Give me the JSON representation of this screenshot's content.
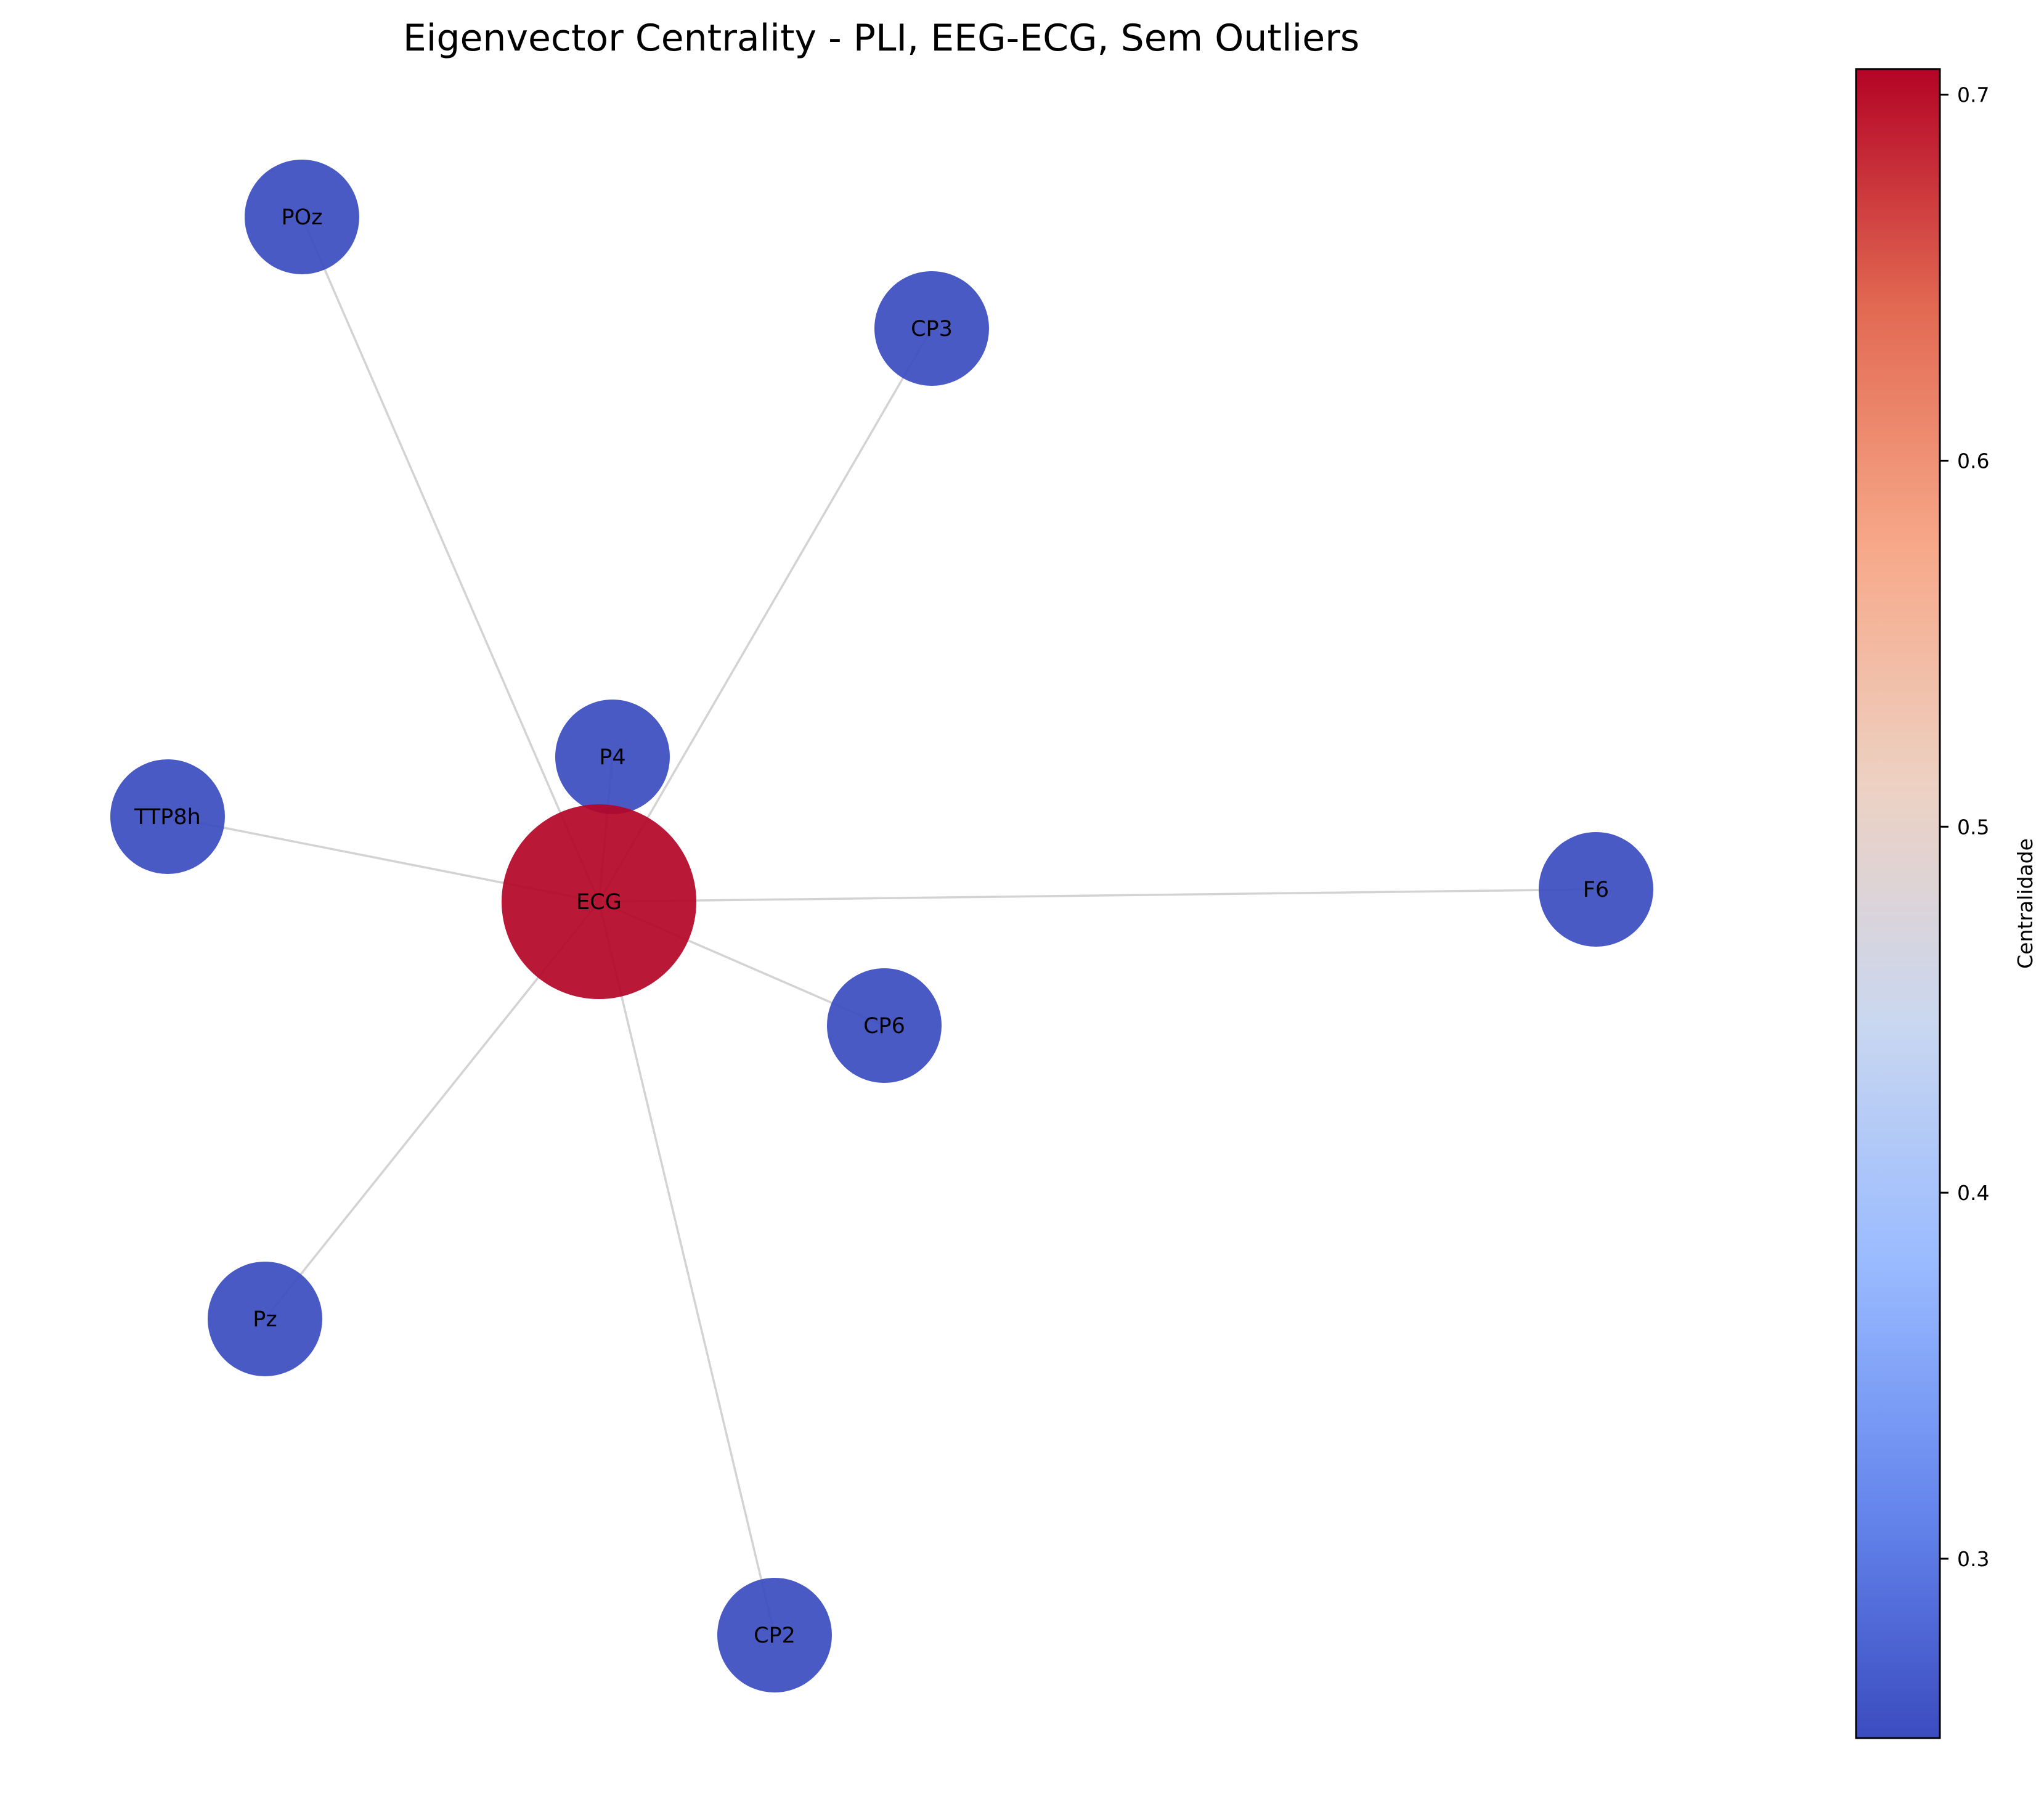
{
  "title": "Eigenvector Centrality - PLI, EEG-ECG, Sem Outliers",
  "colors": {
    "high": "#b40426",
    "low": "#3b4cc0",
    "edge": "#d3d3d3"
  },
  "colorbar": {
    "label": "Centralidade",
    "range": [
      0.251,
      0.707
    ],
    "ticks": [
      {
        "value": 0.3,
        "label": "0.3"
      },
      {
        "value": 0.4,
        "label": "0.4"
      },
      {
        "value": 0.5,
        "label": "0.5"
      },
      {
        "value": 0.6,
        "label": "0.6"
      },
      {
        "value": 0.7,
        "label": "0.7"
      }
    ],
    "gradient_stops": [
      "#3b4cc0",
      "#6788ee",
      "#9abbff",
      "#c9d7f0",
      "#edd1c2",
      "#f7a889",
      "#e26952",
      "#b40426"
    ]
  },
  "nodes": [
    {
      "id": "ECG",
      "label": "ECG",
      "centrality": 0.707
    },
    {
      "id": "POz",
      "label": "POz",
      "centrality": 0.25
    },
    {
      "id": "CP3",
      "label": "CP3",
      "centrality": 0.25
    },
    {
      "id": "P4",
      "label": "P4",
      "centrality": 0.25
    },
    {
      "id": "TTP8h",
      "label": "TTP8h",
      "centrality": 0.25
    },
    {
      "id": "F6",
      "label": "F6",
      "centrality": 0.25
    },
    {
      "id": "CP6",
      "label": "CP6",
      "centrality": 0.25
    },
    {
      "id": "Pz",
      "label": "Pz",
      "centrality": 0.25
    },
    {
      "id": "CP2",
      "label": "CP2",
      "centrality": 0.25
    }
  ],
  "edges": [
    {
      "source": "ECG",
      "target": "POz"
    },
    {
      "source": "ECG",
      "target": "CP3"
    },
    {
      "source": "ECG",
      "target": "P4"
    },
    {
      "source": "ECG",
      "target": "TTP8h"
    },
    {
      "source": "ECG",
      "target": "F6"
    },
    {
      "source": "ECG",
      "target": "CP6"
    },
    {
      "source": "ECG",
      "target": "Pz"
    },
    {
      "source": "ECG",
      "target": "CP2"
    }
  ]
}
